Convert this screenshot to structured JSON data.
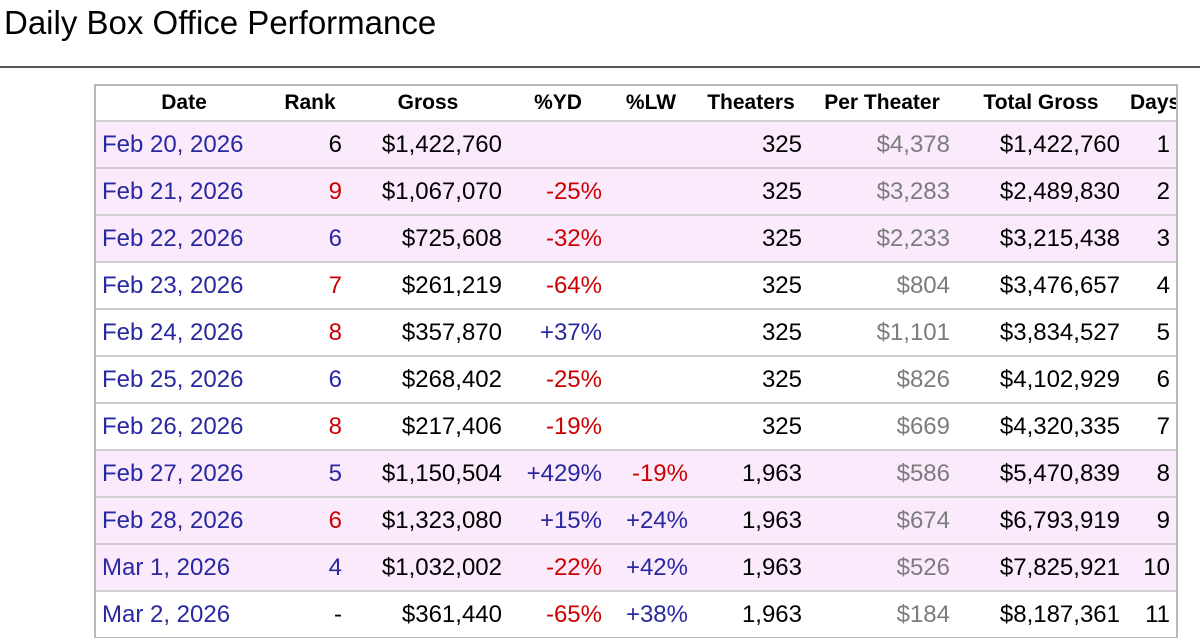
{
  "page": {
    "title": "Daily Box Office Performance"
  },
  "table": {
    "headers": {
      "date": "Date",
      "rank": "Rank",
      "gross": "Gross",
      "yd": "%YD",
      "lw": "%LW",
      "theaters": "Theaters",
      "per_theater": "Per Theater",
      "total_gross": "Total Gross",
      "days": "Days"
    },
    "rows": [
      {
        "date": "Feb 20, 2026",
        "rank": "6",
        "rank_style": "top",
        "gross": "$1,422,760",
        "yd": "",
        "yd_style": "",
        "lw": "",
        "lw_style": "",
        "theaters": "325",
        "per_theater": "$4,378",
        "total_gross": "$1,422,760",
        "days": "1",
        "highlight": true
      },
      {
        "date": "Feb 21, 2026",
        "rank": "9",
        "rank_style": "low",
        "gross": "$1,067,070",
        "yd": "-25%",
        "yd_style": "neg",
        "lw": "",
        "lw_style": "",
        "theaters": "325",
        "per_theater": "$3,283",
        "total_gross": "$2,489,830",
        "days": "2",
        "highlight": true
      },
      {
        "date": "Feb 22, 2026",
        "rank": "6",
        "rank_style": "pos",
        "gross": "$725,608",
        "yd": "-32%",
        "yd_style": "neg",
        "lw": "",
        "lw_style": "",
        "theaters": "325",
        "per_theater": "$2,233",
        "total_gross": "$3,215,438",
        "days": "3",
        "highlight": true
      },
      {
        "date": "Feb 23, 2026",
        "rank": "7",
        "rank_style": "low",
        "gross": "$261,219",
        "yd": "-64%",
        "yd_style": "neg",
        "lw": "",
        "lw_style": "",
        "theaters": "325",
        "per_theater": "$804",
        "total_gross": "$3,476,657",
        "days": "4",
        "highlight": false
      },
      {
        "date": "Feb 24, 2026",
        "rank": "8",
        "rank_style": "low",
        "gross": "$357,870",
        "yd": "+37%",
        "yd_style": "pos",
        "lw": "",
        "lw_style": "",
        "theaters": "325",
        "per_theater": "$1,101",
        "total_gross": "$3,834,527",
        "days": "5",
        "highlight": false
      },
      {
        "date": "Feb 25, 2026",
        "rank": "6",
        "rank_style": "pos",
        "gross": "$268,402",
        "yd": "-25%",
        "yd_style": "neg",
        "lw": "",
        "lw_style": "",
        "theaters": "325",
        "per_theater": "$826",
        "total_gross": "$4,102,929",
        "days": "6",
        "highlight": false
      },
      {
        "date": "Feb 26, 2026",
        "rank": "8",
        "rank_style": "low",
        "gross": "$217,406",
        "yd": "-19%",
        "yd_style": "neg",
        "lw": "",
        "lw_style": "",
        "theaters": "325",
        "per_theater": "$669",
        "total_gross": "$4,320,335",
        "days": "7",
        "highlight": false
      },
      {
        "date": "Feb 27, 2026",
        "rank": "5",
        "rank_style": "pos",
        "gross": "$1,150,504",
        "yd": "+429%",
        "yd_style": "pos",
        "lw": "-19%",
        "lw_style": "neg",
        "theaters": "1,963",
        "per_theater": "$586",
        "total_gross": "$5,470,839",
        "days": "8",
        "highlight": true
      },
      {
        "date": "Feb 28, 2026",
        "rank": "6",
        "rank_style": "low",
        "gross": "$1,323,080",
        "yd": "+15%",
        "yd_style": "pos",
        "lw": "+24%",
        "lw_style": "pos",
        "theaters": "1,963",
        "per_theater": "$674",
        "total_gross": "$6,793,919",
        "days": "9",
        "highlight": true
      },
      {
        "date": "Mar 1, 2026",
        "rank": "4",
        "rank_style": "pos",
        "gross": "$1,032,002",
        "yd": "-22%",
        "yd_style": "neg",
        "lw": "+42%",
        "lw_style": "pos",
        "theaters": "1,963",
        "per_theater": "$526",
        "total_gross": "$7,825,921",
        "days": "10",
        "highlight": true
      },
      {
        "date": "Mar 2, 2026",
        "rank": "-",
        "rank_style": "top",
        "gross": "$361,440",
        "yd": "-65%",
        "yd_style": "neg",
        "lw": "+38%",
        "lw_style": "pos",
        "theaters": "1,963",
        "per_theater": "$184",
        "total_gross": "$8,187,361",
        "days": "11",
        "highlight": false
      }
    ]
  },
  "colors": {
    "highlight_row": "#fbeafb",
    "link_blue": "#2828a0",
    "negative_red": "#cc0000",
    "muted_gray": "#7c7c7c"
  }
}
